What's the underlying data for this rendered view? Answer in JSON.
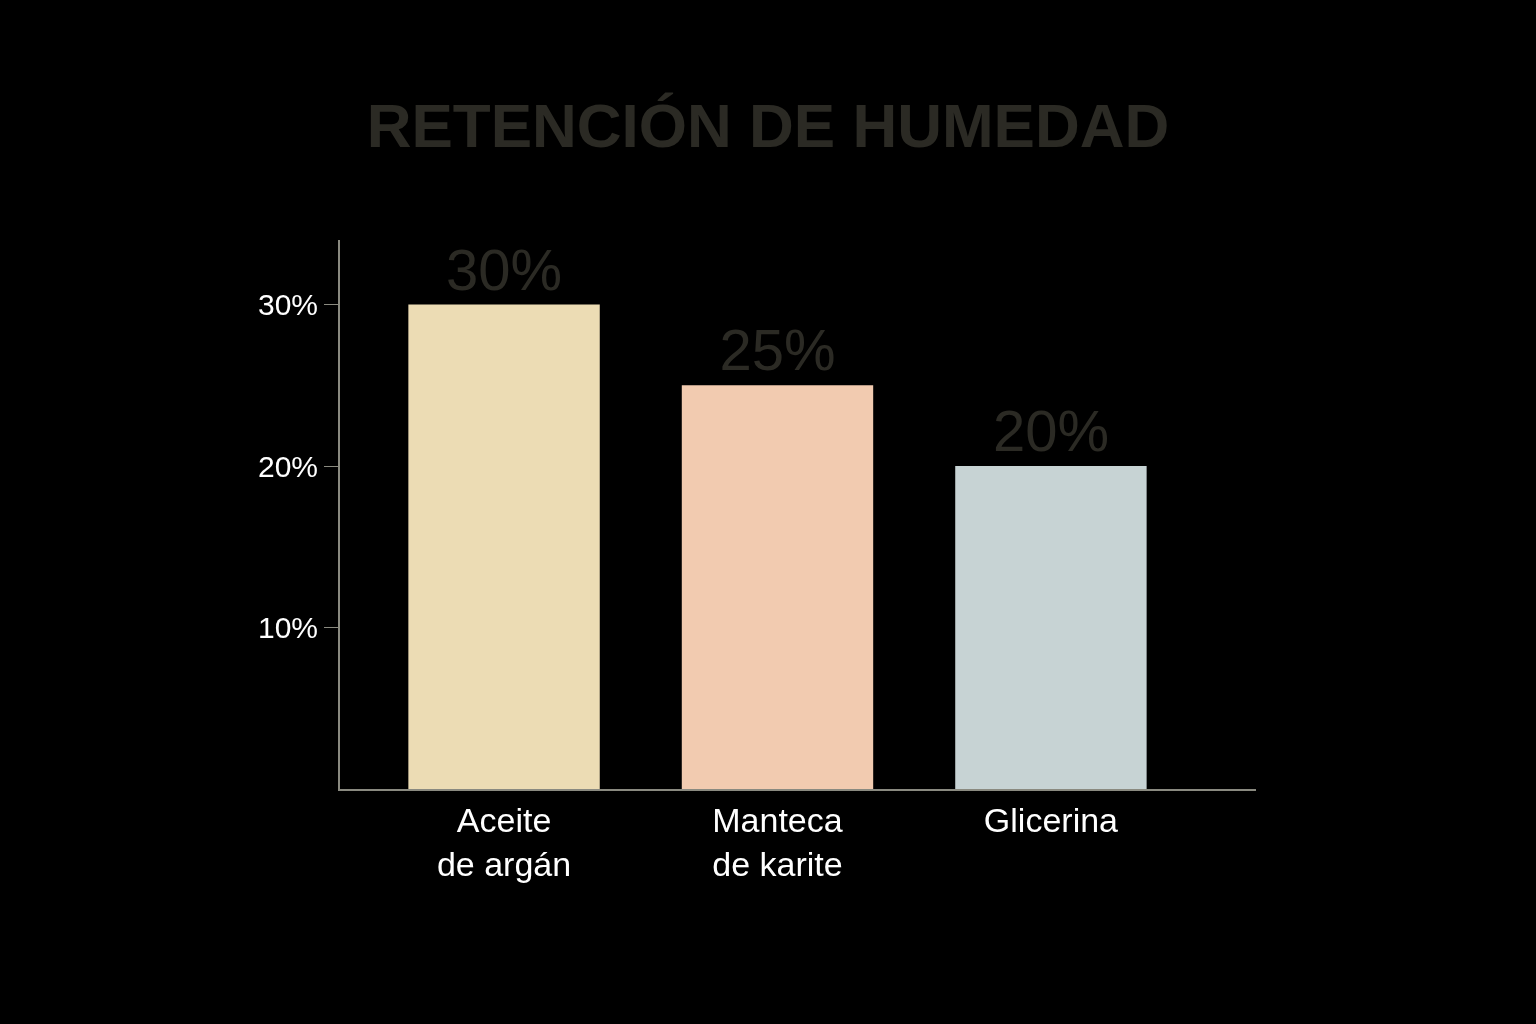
{
  "chart_data": {
    "type": "bar",
    "title": "RETENCIÓN DE HUMEDAD",
    "categories": [
      "Aceite\nde argán",
      "Manteca\nde karite",
      "Glicerina"
    ],
    "values": [
      30,
      25,
      20
    ],
    "value_labels": [
      "30%",
      "25%",
      "20%"
    ],
    "colors": [
      "#ecdcb4",
      "#f2cbb0",
      "#c7d3d4"
    ],
    "ylim": [
      0,
      34
    ],
    "yticks": [
      {
        "value": 10,
        "label": "10%"
      },
      {
        "value": 20,
        "label": "20%"
      },
      {
        "value": 30,
        "label": "30%"
      }
    ],
    "grid": false,
    "legend": false
  }
}
